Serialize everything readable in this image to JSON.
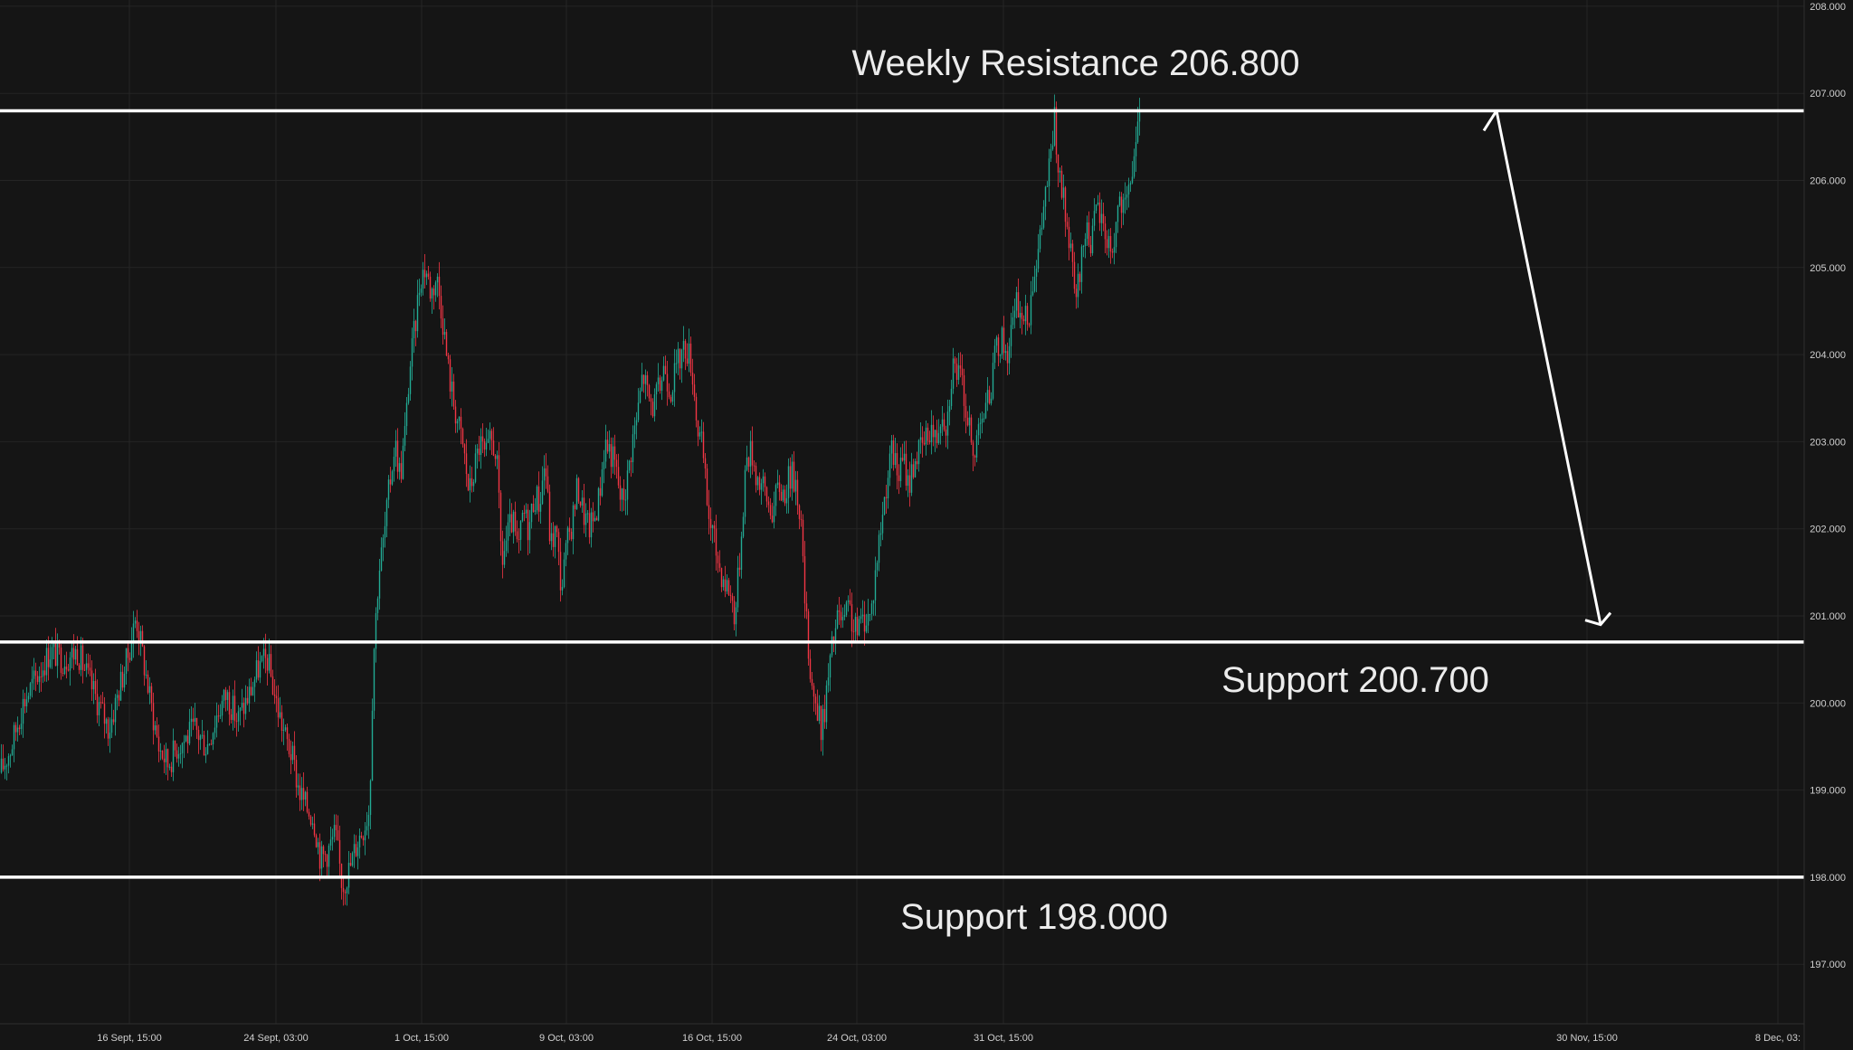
{
  "chart_data": {
    "type": "candlestick",
    "title": "",
    "xlabel": "",
    "ylabel": "",
    "ylim": [
      196.5,
      208.0
    ],
    "grid": true,
    "background_color": "#151515",
    "up_color": "#22ab94",
    "down_color": "#f23645",
    "level_color": "#ffffff",
    "y_ticks": [
      "197.000",
      "198.000",
      "199.000",
      "200.000",
      "201.000",
      "202.000",
      "203.000",
      "204.000",
      "205.000",
      "206.000",
      "207.000",
      "208.000"
    ],
    "y_tick_values": [
      197,
      198,
      199,
      200,
      201,
      202,
      203,
      204,
      205,
      206,
      207,
      208
    ],
    "x_ticks": [
      "16 Sept, 15:00",
      "24 Sept, 03:00",
      "1 Oct, 15:00",
      "9 Oct, 03:00",
      "16 Oct, 15:00",
      "24 Oct, 03:00",
      "31 Oct, 15:00",
      "30 Nov, 15:00",
      "8 Dec, 03:"
    ],
    "levels": [
      {
        "label": "Weekly Resistance 206.800",
        "price": 206.8,
        "price_tag": "206.800"
      },
      {
        "label": "Support 200.700",
        "price": 200.7,
        "price_tag": "200.700"
      },
      {
        "label": "Support 198.000",
        "price": 198.0,
        "price_tag": "198.000"
      }
    ],
    "projection": {
      "from_price": 206.8,
      "to_price": 200.9,
      "direction": "down"
    },
    "price_path": [
      [
        0,
        199.2
      ],
      [
        12,
        199.5
      ],
      [
        25,
        200.0
      ],
      [
        40,
        200.3
      ],
      [
        55,
        200.6
      ],
      [
        70,
        200.5
      ],
      [
        85,
        200.6
      ],
      [
        100,
        200.2
      ],
      [
        112,
        199.9
      ],
      [
        120,
        199.7
      ],
      [
        132,
        200.2
      ],
      [
        140,
        200.5
      ],
      [
        150,
        201.0
      ],
      [
        158,
        200.5
      ],
      [
        166,
        200.0
      ],
      [
        175,
        199.5
      ],
      [
        185,
        199.3
      ],
      [
        195,
        199.5
      ],
      [
        205,
        199.6
      ],
      [
        215,
        199.7
      ],
      [
        228,
        199.5
      ],
      [
        240,
        199.9
      ],
      [
        250,
        200.1
      ],
      [
        262,
        199.8
      ],
      [
        275,
        200.1
      ],
      [
        285,
        200.4
      ],
      [
        295,
        200.5
      ],
      [
        305,
        200.0
      ],
      [
        315,
        199.6
      ],
      [
        322,
        199.4
      ],
      [
        330,
        199.0
      ],
      [
        338,
        198.8
      ],
      [
        346,
        198.7
      ],
      [
        354,
        198.2
      ],
      [
        362,
        198.3
      ],
      [
        370,
        198.5
      ],
      [
        378,
        197.9
      ],
      [
        386,
        198.1
      ],
      [
        394,
        198.4
      ],
      [
        402,
        198.6
      ],
      [
        408,
        198.8
      ],
      [
        412,
        200.5
      ],
      [
        418,
        201.5
      ],
      [
        424,
        201.9
      ],
      [
        430,
        202.5
      ],
      [
        436,
        203.0
      ],
      [
        442,
        202.6
      ],
      [
        448,
        203.2
      ],
      [
        452,
        203.8
      ],
      [
        458,
        204.3
      ],
      [
        464,
        204.9
      ],
      [
        470,
        205.0
      ],
      [
        476,
        204.7
      ],
      [
        482,
        204.9
      ],
      [
        488,
        204.5
      ],
      [
        494,
        203.9
      ],
      [
        500,
        203.5
      ],
      [
        506,
        203.2
      ],
      [
        512,
        202.9
      ],
      [
        518,
        202.4
      ],
      [
        524,
        202.7
      ],
      [
        530,
        203.0
      ],
      [
        536,
        202.8
      ],
      [
        542,
        203.0
      ],
      [
        548,
        202.9
      ],
      [
        554,
        201.6
      ],
      [
        560,
        201.9
      ],
      [
        566,
        202.1
      ],
      [
        572,
        201.7
      ],
      [
        578,
        202.2
      ],
      [
        584,
        202.0
      ],
      [
        590,
        202.4
      ],
      [
        596,
        202.3
      ],
      [
        602,
        202.8
      ],
      [
        608,
        201.8
      ],
      [
        614,
        202.0
      ],
      [
        620,
        201.3
      ],
      [
        626,
        201.8
      ],
      [
        632,
        202.1
      ],
      [
        638,
        202.5
      ],
      [
        644,
        202.2
      ],
      [
        650,
        202.0
      ],
      [
        656,
        202.1
      ],
      [
        662,
        202.4
      ],
      [
        668,
        203.0
      ],
      [
        674,
        202.9
      ],
      [
        680,
        202.7
      ],
      [
        686,
        202.3
      ],
      [
        692,
        202.5
      ],
      [
        698,
        203.0
      ],
      [
        704,
        203.3
      ],
      [
        710,
        203.8
      ],
      [
        716,
        203.5
      ],
      [
        722,
        203.4
      ],
      [
        728,
        203.6
      ],
      [
        734,
        203.9
      ],
      [
        740,
        203.6
      ],
      [
        746,
        203.8
      ],
      [
        752,
        204.0
      ],
      [
        758,
        204.1
      ],
      [
        764,
        203.9
      ],
      [
        770,
        203.2
      ],
      [
        776,
        202.9
      ],
      [
        782,
        202.2
      ],
      [
        788,
        201.9
      ],
      [
        794,
        201.6
      ],
      [
        800,
        201.4
      ],
      [
        806,
        201.3
      ],
      [
        812,
        201.0
      ],
      [
        818,
        201.8
      ],
      [
        824,
        202.8
      ],
      [
        830,
        202.9
      ],
      [
        836,
        202.6
      ],
      [
        842,
        202.5
      ],
      [
        848,
        202.3
      ],
      [
        854,
        202.2
      ],
      [
        860,
        202.5
      ],
      [
        866,
        202.4
      ],
      [
        872,
        202.6
      ],
      [
        878,
        202.6
      ],
      [
        884,
        202.2
      ],
      [
        890,
        201.0
      ],
      [
        896,
        200.3
      ],
      [
        902,
        199.9
      ],
      [
        908,
        199.7
      ],
      [
        914,
        200.2
      ],
      [
        920,
        200.7
      ],
      [
        926,
        201.0
      ],
      [
        932,
        200.9
      ],
      [
        938,
        201.1
      ],
      [
        944,
        200.8
      ],
      [
        950,
        200.9
      ],
      [
        956,
        201.0
      ],
      [
        962,
        201.0
      ],
      [
        968,
        201.6
      ],
      [
        974,
        202.1
      ],
      [
        980,
        202.6
      ],
      [
        986,
        202.9
      ],
      [
        992,
        202.6
      ],
      [
        998,
        202.8
      ],
      [
        1004,
        202.5
      ],
      [
        1010,
        202.8
      ],
      [
        1016,
        202.9
      ],
      [
        1022,
        203.0
      ],
      [
        1028,
        203.2
      ],
      [
        1034,
        203.0
      ],
      [
        1040,
        203.4
      ],
      [
        1046,
        203.2
      ],
      [
        1052,
        203.9
      ],
      [
        1058,
        203.8
      ],
      [
        1064,
        203.6
      ],
      [
        1070,
        203.2
      ],
      [
        1076,
        202.7
      ],
      [
        1082,
        203.4
      ],
      [
        1088,
        203.3
      ],
      [
        1094,
        203.6
      ],
      [
        1100,
        204.0
      ],
      [
        1106,
        204.2
      ],
      [
        1112,
        204.0
      ],
      [
        1118,
        204.3
      ],
      [
        1124,
        204.6
      ],
      [
        1130,
        204.4
      ],
      [
        1136,
        204.4
      ],
      [
        1142,
        205.0
      ],
      [
        1148,
        205.2
      ],
      [
        1154,
        205.8
      ],
      [
        1160,
        206.2
      ],
      [
        1165,
        206.7
      ],
      [
        1170,
        206.0
      ],
      [
        1176,
        205.7
      ],
      [
        1182,
        205.2
      ],
      [
        1188,
        204.6
      ],
      [
        1194,
        205.0
      ],
      [
        1200,
        205.5
      ],
      [
        1206,
        205.3
      ],
      [
        1212,
        205.7
      ],
      [
        1218,
        205.5
      ],
      [
        1224,
        205.3
      ],
      [
        1230,
        205.2
      ],
      [
        1236,
        205.8
      ],
      [
        1242,
        205.6
      ],
      [
        1248,
        205.9
      ],
      [
        1254,
        206.4
      ],
      [
        1260,
        206.7
      ]
    ]
  }
}
